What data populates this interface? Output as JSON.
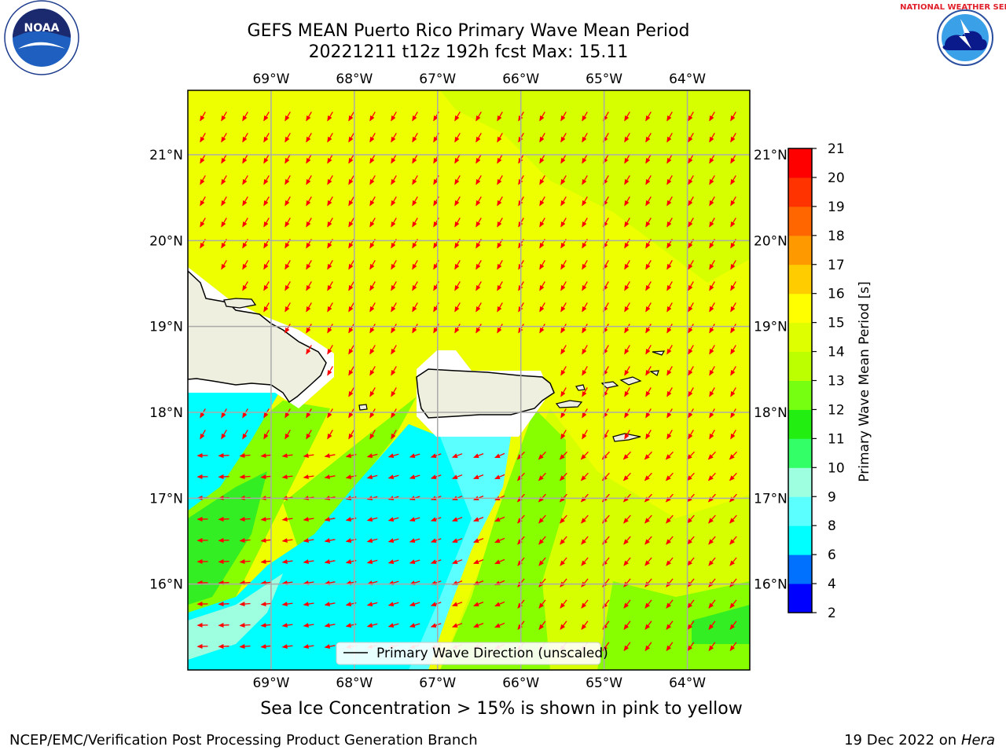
{
  "title": {
    "line1": "GEFS MEAN Puerto Rico Primary Wave Mean Period",
    "line2": "20221211 t12z 192h fcst   Max: 15.11"
  },
  "map": {
    "lon_labels": [
      "69°W",
      "68°W",
      "67°W",
      "66°W",
      "65°W",
      "64°W"
    ],
    "lon_values": [
      -69,
      -68,
      -67,
      -66,
      -65,
      -64
    ],
    "lat_labels": [
      "21°N",
      "20°N",
      "19°N",
      "18°N",
      "17°N",
      "16°N"
    ],
    "lat_values": [
      21,
      20,
      19,
      18,
      17,
      16
    ],
    "lon_range": [
      -70.0,
      -63.25
    ],
    "lat_range": [
      15.0,
      21.75
    ],
    "grid": true,
    "land_color": "#efefdf",
    "arrow_color": "#ff0000",
    "legend_label": "Primary Wave Direction (unscaled)"
  },
  "colorbar": {
    "label": "Primary Wave Mean Period [s]",
    "ticks": [
      "2",
      "4",
      "6",
      "8",
      "9",
      "10",
      "11",
      "12",
      "13",
      "14",
      "15",
      "16",
      "17",
      "18",
      "19",
      "20",
      "21"
    ],
    "colors": [
      "#0000ff",
      "#0070ff",
      "#00ffff",
      "#5cffff",
      "#9effe0",
      "#33ff66",
      "#22ee11",
      "#77ff11",
      "#bbff00",
      "#ddff00",
      "#ffff00",
      "#ffcc00",
      "#ff9900",
      "#ff6600",
      "#ff3300",
      "#ff0000"
    ]
  },
  "footer": {
    "note": "Sea Ice Concentration > 15% is shown in pink to yellow",
    "credit": "NCEP/EMC/Verification Post Processing Product Generation Branch",
    "date": "19 Dec 2022 on",
    "host": "Hera"
  },
  "logos": {
    "left": "NOAA",
    "right": "NATIONAL WEATHER SERVICE"
  }
}
